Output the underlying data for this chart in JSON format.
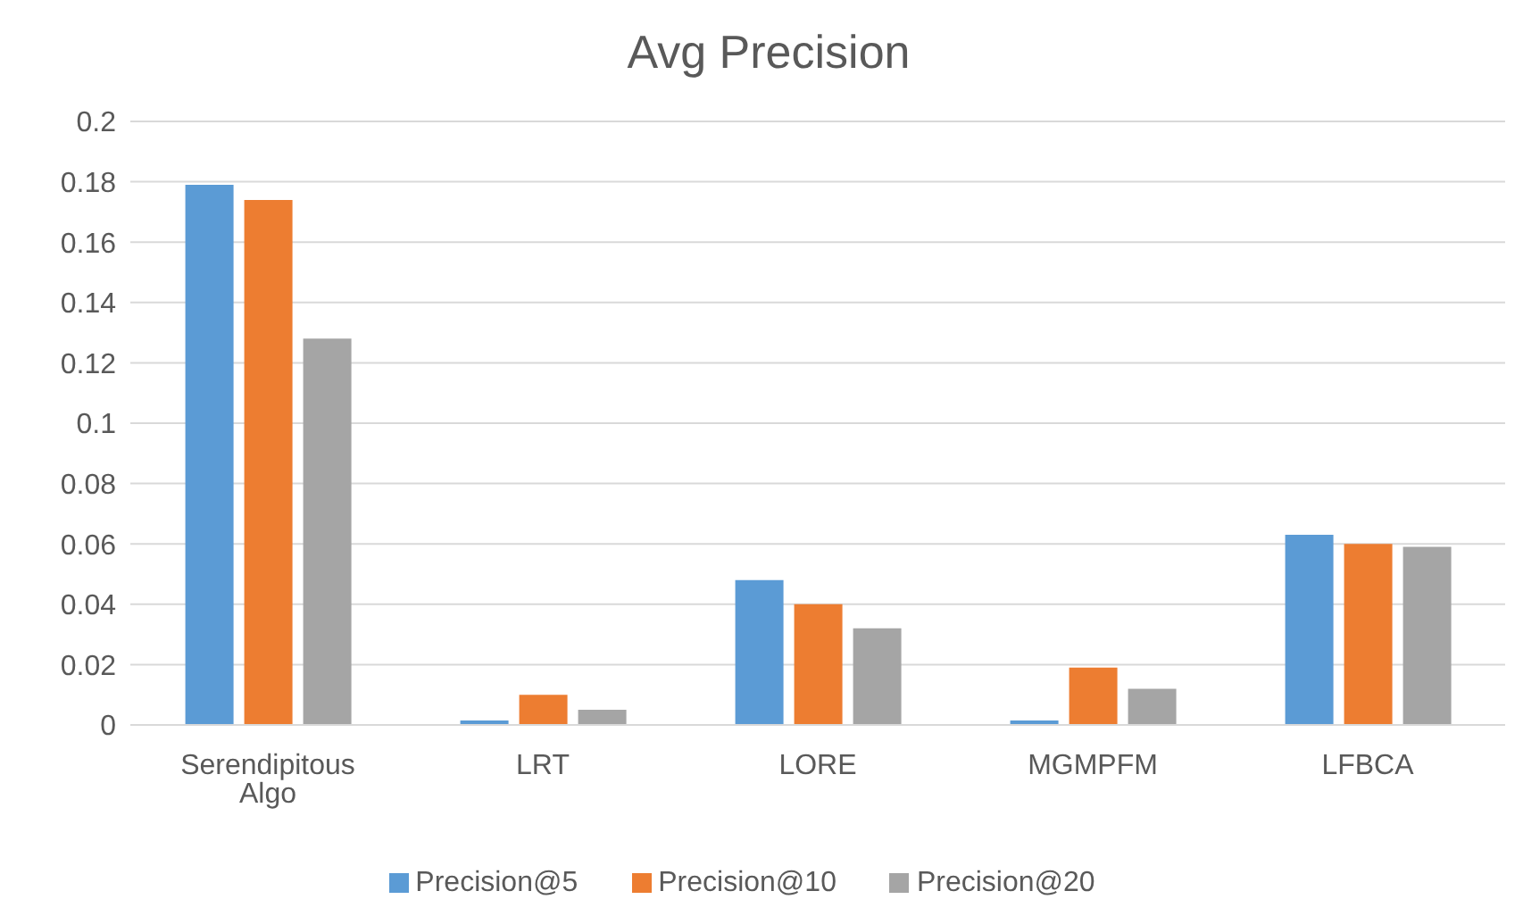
{
  "chart_data": {
    "type": "bar",
    "title": "Avg Precision",
    "categories": [
      "Serendipitous Algo",
      "LRT",
      "LORE",
      "MGMPFM",
      "LFBCA"
    ],
    "series": [
      {
        "name": "Precision@5",
        "color": "#5b9bd5",
        "values": [
          0.179,
          0.0015,
          0.048,
          0.0015,
          0.063
        ]
      },
      {
        "name": "Precision@10",
        "color": "#ed7d31",
        "values": [
          0.174,
          0.01,
          0.04,
          0.019,
          0.06
        ]
      },
      {
        "name": "Precision@20",
        "color": "#a5a5a5",
        "values": [
          0.128,
          0.005,
          0.032,
          0.012,
          0.059
        ]
      }
    ],
    "ylim": [
      0,
      0.2
    ],
    "yticks": [
      0,
      0.02,
      0.04,
      0.06,
      0.08,
      0.1,
      0.12,
      0.14,
      0.16,
      0.18,
      0.2
    ],
    "grid": "y",
    "legend": "bottom"
  }
}
